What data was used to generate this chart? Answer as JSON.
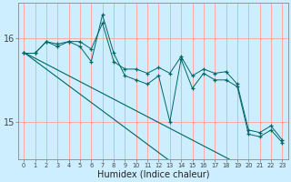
{
  "xlabel": "Humidex (Indice chaleur)",
  "background_color": "#cceeff",
  "grid_color": "#ffaaaa",
  "line_color": "#006666",
  "x": [
    0,
    1,
    2,
    3,
    4,
    5,
    6,
    7,
    8,
    9,
    10,
    11,
    12,
    13,
    14,
    15,
    16,
    17,
    18,
    19,
    20,
    21,
    22,
    23
  ],
  "series1": [
    15.82,
    15.82,
    15.96,
    15.93,
    15.96,
    15.96,
    15.87,
    16.18,
    15.72,
    15.63,
    15.63,
    15.58,
    15.65,
    15.58,
    15.78,
    15.55,
    15.63,
    15.58,
    15.6,
    15.45,
    14.9,
    14.87,
    14.95,
    14.78
  ],
  "series2": [
    15.82,
    15.82,
    15.96,
    15.9,
    15.96,
    15.9,
    15.72,
    16.28,
    15.82,
    15.55,
    15.5,
    15.45,
    15.55,
    15.0,
    15.75,
    15.4,
    15.58,
    15.5,
    15.5,
    15.42,
    14.85,
    14.82,
    14.9,
    14.75
  ],
  "trend1": [
    15.83,
    15.76,
    15.69,
    15.62,
    15.55,
    15.48,
    15.41,
    15.34,
    15.27,
    15.2,
    15.13,
    15.06,
    14.99,
    14.92,
    14.85,
    14.78,
    14.71,
    14.64,
    14.57,
    14.5,
    14.43,
    14.36,
    14.29,
    14.22
  ],
  "trend2": [
    15.83,
    15.73,
    15.63,
    15.53,
    15.43,
    15.33,
    15.23,
    15.13,
    15.03,
    14.93,
    14.83,
    14.73,
    14.63,
    14.53,
    14.43,
    14.33,
    14.23,
    14.13,
    14.03,
    13.93,
    13.83,
    13.73,
    13.63,
    13.53
  ],
  "ylim_min": 14.55,
  "ylim_max": 16.42,
  "ytick_vals": [
    15.0,
    16.0
  ],
  "ytick_labels": [
    "15",
    "16"
  ]
}
